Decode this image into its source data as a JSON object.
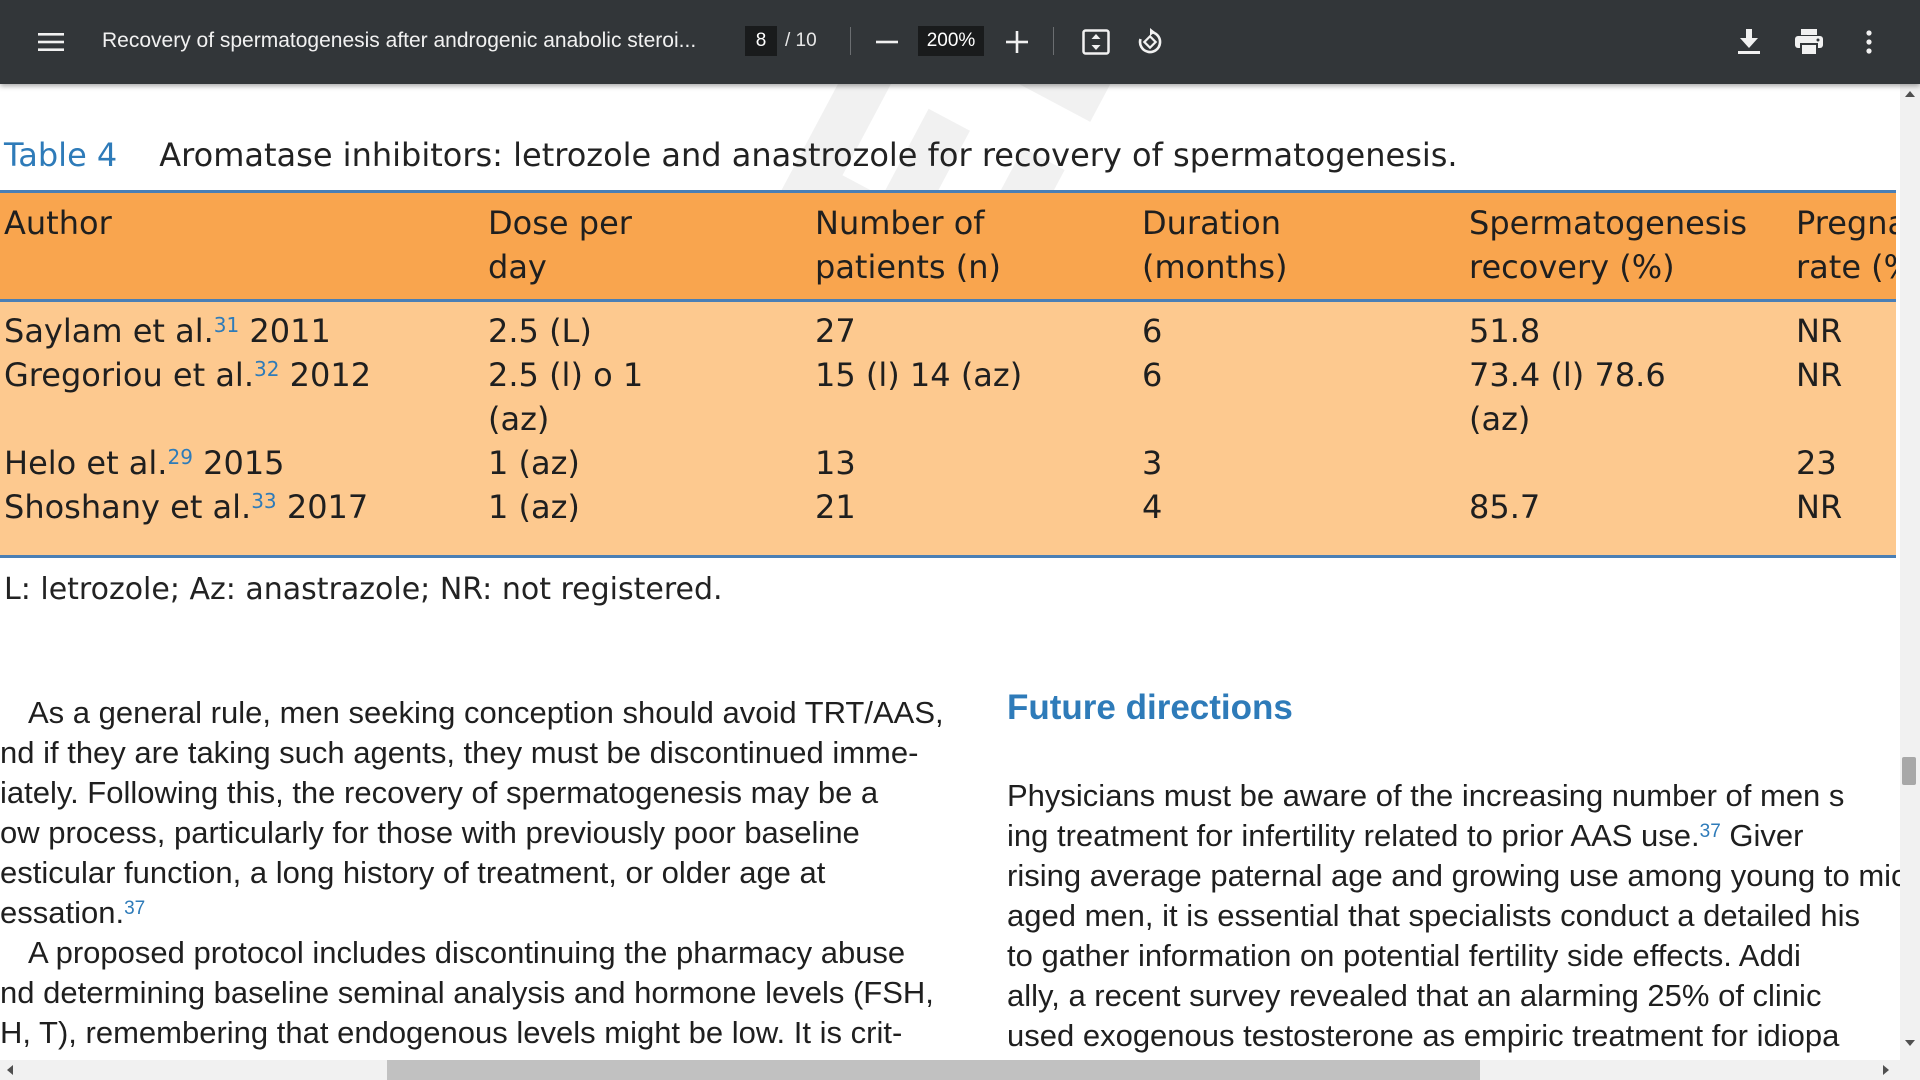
{
  "toolbar": {
    "menu_icon": "hamburger-menu-icon",
    "title": "Recovery of spermatogenesis after androgenic anabolic steroi...",
    "page_current": "8",
    "page_total": "/ 10",
    "zoom": "200%",
    "icons": [
      "zoom-out-icon",
      "zoom-in-icon",
      "fit-page-icon",
      "rotate-icon",
      "download-icon",
      "print-icon",
      "more-options-icon"
    ]
  },
  "document": {
    "watermark": "EDP",
    "table_label": "Table 4",
    "table_title": "Aromatase inhibitors: letrozole and anastrozole for recovery of spermatogenesis.",
    "headers": [
      {
        "line1": "Author",
        "line2": ""
      },
      {
        "line1": "Dose per",
        "line2": "day"
      },
      {
        "line1": "Number of",
        "line2": "patients (n)"
      },
      {
        "line1": "Duration",
        "line2": "(months)"
      },
      {
        "line1": "Spermatogenesis",
        "line2": "recovery (%)"
      },
      {
        "line1": "Pregna",
        "line2": "rate (%"
      }
    ],
    "rows": [
      {
        "author": "Saylam et al.",
        "ref": "31",
        "year": "2011",
        "dose": "2.5 (L)",
        "dose2": "",
        "patients": "27",
        "duration": "6",
        "recovery": "51.8",
        "recovery2": "",
        "pregnancy": "NR"
      },
      {
        "author": "Gregoriou et al.",
        "ref": "32",
        "year": "2012",
        "dose": "2.5 (l) o 1",
        "dose2": "(az)",
        "patients": "15 (l) 14 (az)",
        "duration": "6",
        "recovery": "73.4 (l) 78.6",
        "recovery2": "(az)",
        "pregnancy": "NR"
      },
      {
        "author": "Helo et al.",
        "ref": "29",
        "year": "2015",
        "dose": "1 (az)",
        "dose2": "",
        "patients": "13",
        "duration": "3",
        "recovery": "",
        "recovery2": "",
        "pregnancy": "23"
      },
      {
        "author": "Shoshany et al.",
        "ref": "33",
        "year": "2017",
        "dose": "1 (az)",
        "dose2": "",
        "patients": "21",
        "duration": "4",
        "recovery": "85.7",
        "recovery2": "",
        "pregnancy": "NR"
      }
    ],
    "footnote": "L: letrozole; Az: anastrazole; NR: not registered.",
    "left_column": [
      {
        "text": "As a general rule, men seeking conception should avoid TRT/AAS,",
        "sup": ""
      },
      {
        "text": "nd if they are taking such agents, they must be discontinued imme-",
        "sup": ""
      },
      {
        "text": "iately. Following this, the recovery of spermatogenesis may be a",
        "sup": ""
      },
      {
        "text": "ow process, particularly for those with previously poor baseline",
        "sup": ""
      },
      {
        "text": "esticular function, a long history of treatment, or older age at",
        "sup": ""
      },
      {
        "text": "essation.",
        "sup": "37"
      },
      {
        "text": "A proposed protocol includes discontinuing the pharmacy abuse",
        "sup": ""
      },
      {
        "text": "nd determining baseline seminal analysis and hormone levels (FSH,",
        "sup": ""
      },
      {
        "text": "H, T), remembering that endogenous levels might be low. It is crit-",
        "sup": ""
      }
    ],
    "section_heading": "Future directions",
    "right_column": [
      {
        "text": "Physicians must be aware of the increasing number of men s",
        "sup": "",
        "after": ""
      },
      {
        "text": "ing treatment for infertility related to prior AAS use.",
        "sup": "37",
        "after": " Giver"
      },
      {
        "text": "rising average paternal age and growing use among young to mic",
        "sup": "",
        "after": ""
      },
      {
        "text": "aged men, it is essential that specialists conduct a detailed his",
        "sup": "",
        "after": ""
      },
      {
        "text": "to gather information on potential fertility side effects. Addi",
        "sup": "",
        "after": ""
      },
      {
        "text": "ally, a recent survey revealed that an alarming 25% of clinic",
        "sup": "",
        "after": ""
      },
      {
        "text": "used exogenous testosterone as empiric treatment for idiopa",
        "sup": "",
        "after": ""
      }
    ]
  },
  "colors": {
    "toolbar_bg": "#323639",
    "table_header_bg": "#f9a54e",
    "table_body_bg": "#fdc98f",
    "accent_blue": "#2e7bb9",
    "rule_blue": "#4a7fb5"
  }
}
